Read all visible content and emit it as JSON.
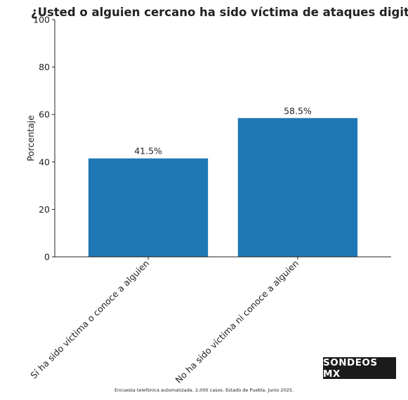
{
  "chart_data": {
    "type": "bar",
    "title": "¿Usted o alguien cercano ha sido víctima de ataques digitales?",
    "xlabel": "",
    "ylabel": "Porcentaje",
    "categories": [
      "Sí ha sido víctima o conoce a alguien",
      "No ha sido víctima ni conoce a alguien"
    ],
    "values": [
      41.5,
      58.5
    ],
    "data_labels": [
      "41.5%",
      "58.5%"
    ],
    "ylim": [
      0,
      100
    ],
    "yticks": [
      0,
      20,
      40,
      60,
      80,
      100
    ],
    "grid": false,
    "bar_color": "#1f77b4"
  },
  "branding": {
    "label": "SONDEOS MX"
  },
  "footnote": "Encuesta telefónica automatizada. 2,000 casos. Estado de Puebla. Junio 2025."
}
